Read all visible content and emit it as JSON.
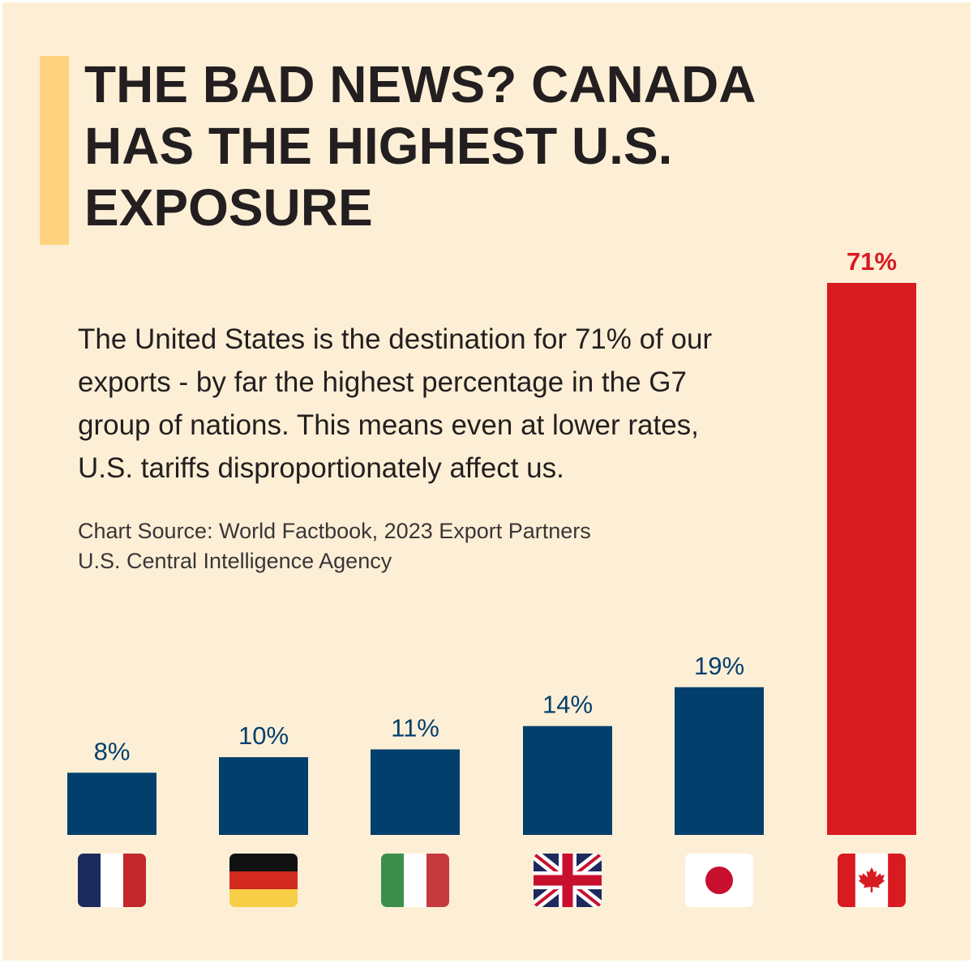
{
  "title_lines": [
    "THE BAD NEWS? CANADA",
    "HAS THE HIGHEST U.S.",
    "EXPOSURE"
  ],
  "description_lines": [
    "The United States is the destination for 71% of our",
    "exports - by far the highest percentage in the G7",
    "group of nations. This means even at lower rates,",
    "U.S. tariffs disproportionately affect us."
  ],
  "source_lines": [
    "Chart Source: World Factbook, 2023 Export Partners",
    "U.S. Central Intelligence Agency"
  ],
  "colors": {
    "background": "#fdefd6",
    "accent": "#fed27f",
    "bar": "#033f6d",
    "highlight_bar": "#d81b21",
    "title_text": "#231f20"
  },
  "chart_data": {
    "type": "bar",
    "categories": [
      "France",
      "Germany",
      "Italy",
      "United Kingdom",
      "Japan",
      "Canada"
    ],
    "values": [
      8,
      10,
      11,
      14,
      19,
      71
    ],
    "value_labels": [
      "8%",
      "10%",
      "11%",
      "14%",
      "19%",
      "71%"
    ],
    "flag_icons": [
      "france-flag-icon",
      "germany-flag-icon",
      "italy-flag-icon",
      "uk-flag-icon",
      "japan-flag-icon",
      "canada-flag-icon"
    ],
    "highlight": "Canada",
    "ylim": [
      0,
      71
    ],
    "title": "",
    "xlabel": "",
    "ylabel": "",
    "grid": false
  }
}
